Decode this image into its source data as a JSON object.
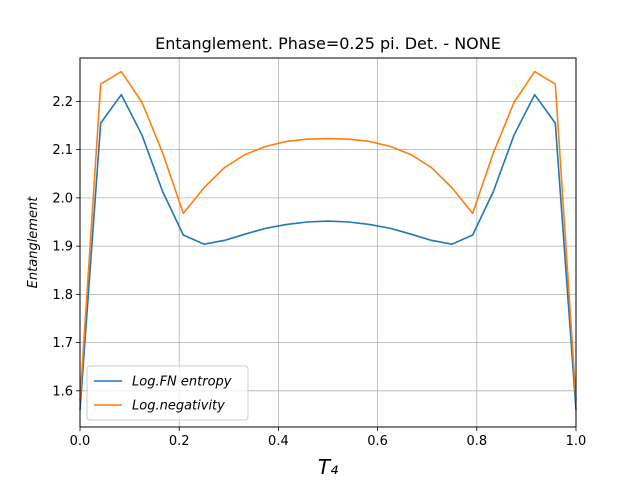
{
  "chart_data": {
    "type": "line",
    "title": "Entanglement. Phase=0.25 pi. Det. - NONE",
    "xlabel": "T₄",
    "ylabel": "Entanglement",
    "xlim": [
      0.0,
      1.0
    ],
    "ylim": [
      1.525,
      2.29
    ],
    "x_ticks": [
      0.0,
      0.2,
      0.4,
      0.6,
      0.8,
      1.0
    ],
    "x_tick_labels": [
      "0.0",
      "0.2",
      "0.4",
      "0.6",
      "0.8",
      "1.0"
    ],
    "y_ticks": [
      1.6,
      1.7,
      1.8,
      1.9,
      2.0,
      2.1,
      2.2
    ],
    "y_tick_labels": [
      "1.6",
      "1.7",
      "1.8",
      "1.9",
      "2.0",
      "2.1",
      "2.2"
    ],
    "grid": true,
    "legend_position": "lower-left",
    "x": [
      0.0,
      0.0417,
      0.0833,
      0.125,
      0.1667,
      0.2083,
      0.25,
      0.2917,
      0.3333,
      0.375,
      0.4167,
      0.4583,
      0.5,
      0.5417,
      0.5833,
      0.625,
      0.6667,
      0.7083,
      0.75,
      0.7917,
      0.8333,
      0.875,
      0.9167,
      0.9583,
      1.0
    ],
    "series": [
      {
        "name": "Log.FN entropy",
        "color": "#1f77b4",
        "values": [
          1.56,
          2.155,
          2.214,
          2.13,
          2.013,
          1.923,
          1.904,
          1.912,
          1.925,
          1.937,
          1.945,
          1.95,
          1.952,
          1.95,
          1.945,
          1.937,
          1.925,
          1.912,
          1.904,
          1.923,
          2.013,
          2.13,
          2.214,
          2.155,
          1.56
        ]
      },
      {
        "name": "Log.negativity",
        "color": "#ff7f0e",
        "values": [
          1.58,
          2.236,
          2.262,
          2.198,
          2.093,
          1.968,
          2.021,
          2.063,
          2.09,
          2.107,
          2.117,
          2.122,
          2.123,
          2.122,
          2.117,
          2.107,
          2.09,
          2.063,
          2.021,
          1.968,
          2.093,
          2.198,
          2.262,
          2.236,
          1.58
        ]
      }
    ]
  }
}
